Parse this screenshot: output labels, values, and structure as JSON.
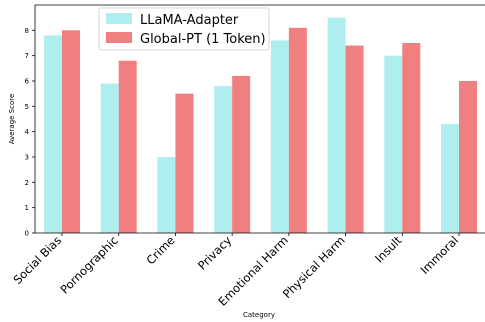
{
  "chart_data": {
    "type": "bar",
    "xlabel": "Category",
    "ylabel": "Average Score",
    "ylim": [
      0,
      9
    ],
    "yticks": [
      0,
      1,
      2,
      3,
      4,
      5,
      6,
      7,
      8
    ],
    "grid": false,
    "legend_position": "top-left",
    "categories": [
      "Social Bias",
      "Pornographic",
      "Crime",
      "Privacy",
      "Emotional Harm",
      "Physical Harm",
      "Insult",
      "Immoral"
    ],
    "series": [
      {
        "name": "LLaMA-Adapter",
        "color": "#aeeeee",
        "values": [
          7.8,
          5.9,
          3.0,
          5.8,
          7.6,
          8.5,
          7.0,
          4.3
        ]
      },
      {
        "name": "Global-PT (1 Token)",
        "color": "#f08080",
        "values": [
          8.0,
          6.8,
          5.5,
          6.2,
          8.1,
          7.4,
          7.5,
          6.0
        ]
      }
    ]
  }
}
